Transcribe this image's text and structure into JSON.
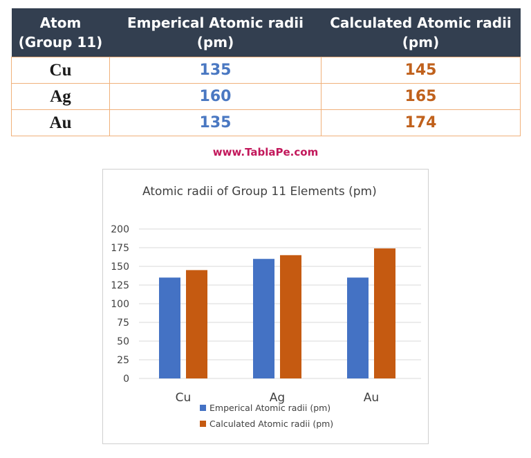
{
  "table": {
    "headers": [
      [
        "Atom",
        "(Group 11)"
      ],
      [
        "Emperical Atomic radii",
        "(pm)"
      ],
      [
        "Calculated Atomic radii",
        "(pm)"
      ]
    ],
    "rows": [
      {
        "atom": "Cu",
        "emperical": "135",
        "calculated": "145"
      },
      {
        "atom": "Ag",
        "emperical": "160",
        "calculated": "165"
      },
      {
        "atom": "Au",
        "emperical": "135",
        "calculated": "174"
      }
    ]
  },
  "watermark": "www.TablaPe.com",
  "colors": {
    "header_bg": "#333f50",
    "emperical": "#4472c4",
    "calculated": "#c55a11",
    "table_border": "#f0b07a",
    "watermark": "#c2185b"
  },
  "chart_data": {
    "type": "bar",
    "title": "Atomic radii of Group 11 Elements (pm)",
    "categories": [
      "Cu",
      "Ag",
      "Au"
    ],
    "series": [
      {
        "name": "Emperical Atomic radii (pm)",
        "values": [
          135,
          160,
          135
        ],
        "color": "#4472c4"
      },
      {
        "name": "Calculated Atomic radii (pm)",
        "values": [
          145,
          165,
          174
        ],
        "color": "#c55a11"
      }
    ],
    "ylim": [
      0,
      200
    ],
    "yticks": [
      0,
      25,
      50,
      75,
      100,
      125,
      150,
      175,
      200
    ],
    "grid": true,
    "legend": "bottom"
  }
}
